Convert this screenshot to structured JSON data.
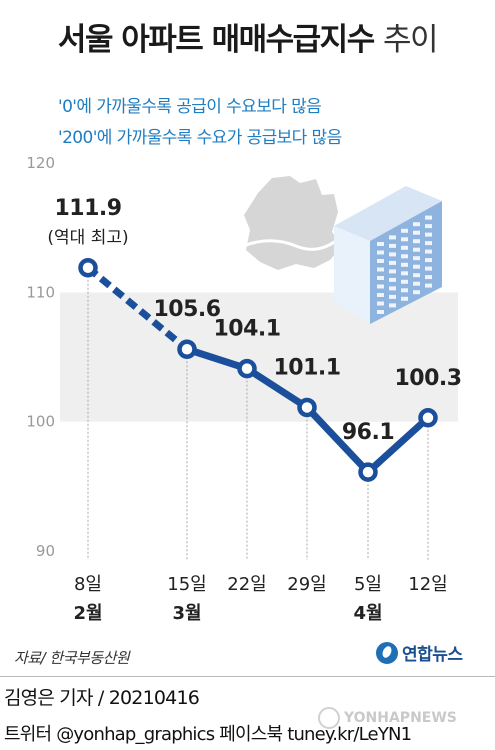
{
  "title": {
    "main": "서울 아파트 매매수급지수",
    "light": "추이"
  },
  "notes": [
    "'0'에 가까울수록 공급이 수요보다 많음",
    "'200'에 가까울수록 수요가 공급보다 많음"
  ],
  "chart_data": {
    "type": "line",
    "categories": [
      "8일",
      "15일",
      "22일",
      "29일",
      "5일",
      "12일"
    ],
    "month_labels": [
      "2월",
      "3월",
      "4월"
    ],
    "month_positions": [
      0,
      1,
      4
    ],
    "values": [
      111.9,
      105.6,
      104.1,
      101.1,
      96.1,
      100.3
    ],
    "value_labels": [
      "111.9",
      "105.6",
      "104.1",
      "101.1",
      "96.1",
      "100.3"
    ],
    "dashed_segments": [
      0
    ],
    "annotation": "(역대 최고)",
    "ylim": [
      90,
      120
    ],
    "yticks": [
      "90",
      "100",
      "110",
      "120"
    ],
    "grid": true,
    "colors": {
      "line": "#1b4f9b",
      "band": "#efefef",
      "text": "#222222",
      "tick": "#999999"
    }
  },
  "source": "자료/ 한국부동산원",
  "logo": "연합뉴스",
  "byline": "김영은 기자 / 20210416",
  "social": "트위터 @yonhap_graphics  페이스북 tuney.kr/LeYN1",
  "watermark": "YONHAPNEWS"
}
